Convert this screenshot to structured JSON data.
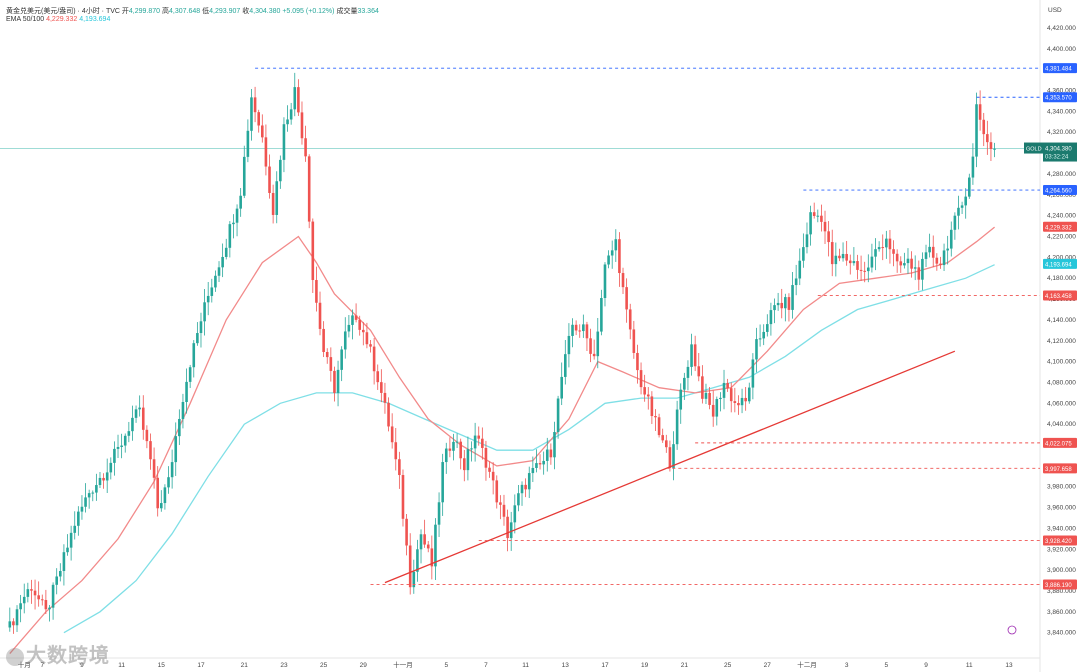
{
  "header": {
    "line1": "黄金兑美元(美元/盎司) · 4小时 · TVC",
    "open_label": "开",
    "open": "4,299.870",
    "high_label": "高",
    "high": "4,307.648",
    "low_label": "低",
    "low": "4,293.907",
    "close_label": "收",
    "close": "4,304.380",
    "change": "+5.095 (+0.12%)",
    "volume_label": "成交量",
    "volume": "33.364",
    "ema_label": "EMA 50/100",
    "ema50": "4,229.332",
    "ema100": "4,193.694"
  },
  "colors": {
    "up": "#26a69a",
    "down": "#ef5350",
    "ema50": "#f28a8a",
    "ema100": "#7fdfe6",
    "trendline": "#e53935",
    "resistance": "#2962ff",
    "support": "#ef5350"
  },
  "price_badge": {
    "symbol": "GOLD",
    "price": "4,304.380",
    "countdown": "03:32:24"
  },
  "watermark": "大数跨境",
  "chart_data": {
    "type": "candlestick",
    "currency": "USD",
    "y_ticks": [
      3840,
      3860,
      3880,
      3900,
      3920,
      3940,
      3960,
      3980,
      4000,
      4020,
      4040,
      4060,
      4080,
      4100,
      4120,
      4140,
      4160,
      4180,
      4200,
      4220,
      4240,
      4260,
      4280,
      4300,
      4320,
      4340,
      4360,
      4380,
      4400,
      4420
    ],
    "ylim": [
      3833,
      4443
    ],
    "x_ticks": [
      {
        "label": "十月",
        "i": 4
      },
      {
        "label": "7",
        "i": 9
      },
      {
        "label": "9",
        "i": 20
      },
      {
        "label": "11",
        "i": 31
      },
      {
        "label": "15",
        "i": 42
      },
      {
        "label": "17",
        "i": 53
      },
      {
        "label": "21",
        "i": 65
      },
      {
        "label": "23",
        "i": 76
      },
      {
        "label": "25",
        "i": 87
      },
      {
        "label": "29",
        "i": 98
      },
      {
        "label": "十一月",
        "i": 109
      },
      {
        "label": "5",
        "i": 121
      },
      {
        "label": "7",
        "i": 132
      },
      {
        "label": "11",
        "i": 143
      },
      {
        "label": "13",
        "i": 154
      },
      {
        "label": "17",
        "i": 165
      },
      {
        "label": "19",
        "i": 176
      },
      {
        "label": "21",
        "i": 187
      },
      {
        "label": "25",
        "i": 199
      },
      {
        "label": "27",
        "i": 210
      },
      {
        "label": "十二月",
        "i": 221
      },
      {
        "label": "3",
        "i": 232
      },
      {
        "label": "5",
        "i": 243
      },
      {
        "label": "9",
        "i": 254
      },
      {
        "label": "11",
        "i": 266
      },
      {
        "label": "13",
        "i": 277
      }
    ],
    "waypoints": [
      [
        0,
        3845
      ],
      [
        3,
        3870
      ],
      [
        6,
        3885
      ],
      [
        10,
        3858
      ],
      [
        14,
        3900
      ],
      [
        18,
        3945
      ],
      [
        22,
        3975
      ],
      [
        26,
        3993
      ],
      [
        30,
        4015
      ],
      [
        34,
        4045
      ],
      [
        36,
        4050
      ],
      [
        39,
        4005
      ],
      [
        41,
        3960
      ],
      [
        44,
        3985
      ],
      [
        47,
        4050
      ],
      [
        50,
        4100
      ],
      [
        53,
        4140
      ],
      [
        56,
        4175
      ],
      [
        60,
        4215
      ],
      [
        64,
        4265
      ],
      [
        67,
        4355
      ],
      [
        70,
        4315
      ],
      [
        73,
        4245
      ],
      [
        76,
        4325
      ],
      [
        79,
        4360
      ],
      [
        82,
        4300
      ],
      [
        84,
        4180
      ],
      [
        87,
        4110
      ],
      [
        90,
        4075
      ],
      [
        93,
        4125
      ],
      [
        96,
        4145
      ],
      [
        99,
        4120
      ],
      [
        102,
        4085
      ],
      [
        105,
        4040
      ],
      [
        108,
        3985
      ],
      [
        111,
        3890
      ],
      [
        114,
        3935
      ],
      [
        117,
        3905
      ],
      [
        120,
        4000
      ],
      [
        123,
        4030
      ],
      [
        126,
        4000
      ],
      [
        129,
        4030
      ],
      [
        132,
        4005
      ],
      [
        135,
        3970
      ],
      [
        138,
        3935
      ],
      [
        141,
        3970
      ],
      [
        144,
        3990
      ],
      [
        147,
        4000
      ],
      [
        150,
        4015
      ],
      [
        153,
        4085
      ],
      [
        156,
        4135
      ],
      [
        159,
        4130
      ],
      [
        162,
        4105
      ],
      [
        165,
        4190
      ],
      [
        168,
        4215
      ],
      [
        171,
        4145
      ],
      [
        174,
        4090
      ],
      [
        177,
        4060
      ],
      [
        180,
        4030
      ],
      [
        183,
        4005
      ],
      [
        186,
        4070
      ],
      [
        189,
        4115
      ],
      [
        192,
        4070
      ],
      [
        195,
        4050
      ],
      [
        198,
        4080
      ],
      [
        201,
        4060
      ],
      [
        204,
        4060
      ],
      [
        207,
        4115
      ],
      [
        210,
        4140
      ],
      [
        213,
        4155
      ],
      [
        216,
        4155
      ],
      [
        219,
        4195
      ],
      [
        222,
        4240
      ],
      [
        225,
        4240
      ],
      [
        228,
        4195
      ],
      [
        231,
        4200
      ],
      [
        234,
        4195
      ],
      [
        237,
        4185
      ],
      [
        240,
        4205
      ],
      [
        243,
        4220
      ],
      [
        246,
        4190
      ],
      [
        249,
        4195
      ],
      [
        252,
        4185
      ],
      [
        255,
        4205
      ],
      [
        258,
        4195
      ],
      [
        261,
        4225
      ],
      [
        264,
        4250
      ],
      [
        267,
        4295
      ],
      [
        268,
        4345
      ],
      [
        271,
        4310
      ],
      [
        273,
        4304
      ]
    ],
    "ema50": [
      [
        0,
        3820
      ],
      [
        10,
        3860
      ],
      [
        20,
        3890
      ],
      [
        30,
        3930
      ],
      [
        40,
        3985
      ],
      [
        50,
        4060
      ],
      [
        60,
        4140
      ],
      [
        70,
        4195
      ],
      [
        80,
        4220
      ],
      [
        85,
        4195
      ],
      [
        90,
        4165
      ],
      [
        100,
        4130
      ],
      [
        108,
        4085
      ],
      [
        116,
        4045
      ],
      [
        125,
        4020
      ],
      [
        135,
        4000
      ],
      [
        145,
        4005
      ],
      [
        155,
        4045
      ],
      [
        163,
        4100
      ],
      [
        170,
        4090
      ],
      [
        180,
        4075
      ],
      [
        190,
        4070
      ],
      [
        200,
        4075
      ],
      [
        210,
        4110
      ],
      [
        220,
        4150
      ],
      [
        230,
        4175
      ],
      [
        240,
        4180
      ],
      [
        250,
        4185
      ],
      [
        260,
        4195
      ],
      [
        268,
        4215
      ],
      [
        273,
        4229
      ]
    ],
    "ema100": [
      [
        15,
        3840
      ],
      [
        25,
        3860
      ],
      [
        35,
        3890
      ],
      [
        45,
        3935
      ],
      [
        55,
        3990
      ],
      [
        65,
        4040
      ],
      [
        75,
        4060
      ],
      [
        85,
        4070
      ],
      [
        95,
        4070
      ],
      [
        105,
        4060
      ],
      [
        115,
        4045
      ],
      [
        125,
        4030
      ],
      [
        135,
        4015
      ],
      [
        145,
        4015
      ],
      [
        155,
        4035
      ],
      [
        165,
        4060
      ],
      [
        175,
        4065
      ],
      [
        185,
        4065
      ],
      [
        195,
        4075
      ],
      [
        205,
        4085
      ],
      [
        215,
        4105
      ],
      [
        225,
        4130
      ],
      [
        235,
        4150
      ],
      [
        245,
        4160
      ],
      [
        255,
        4170
      ],
      [
        265,
        4180
      ],
      [
        273,
        4193
      ]
    ],
    "trendline": {
      "from": [
        104,
        3888
      ],
      "to": [
        262,
        4110
      ]
    },
    "h_levels": [
      {
        "value": 4381.484,
        "label": "4,381.484",
        "style": "resistance",
        "from": 68
      },
      {
        "value": 4353.57,
        "label": "4,353.570",
        "style": "resistance",
        "from": 268
      },
      {
        "value": 4264.56,
        "label": "4,264.560",
        "style": "resistance",
        "from": 220
      },
      {
        "value": 4163.458,
        "label": "4,163.458",
        "style": "support",
        "from": 224
      },
      {
        "value": 4022.075,
        "label": "4,022.075",
        "style": "support",
        "from": 190
      },
      {
        "value": 3997.658,
        "label": "3,997.658",
        "style": "support",
        "from": 182
      },
      {
        "value": 3928.42,
        "label": "3,928.420",
        "style": "support",
        "from": 130
      },
      {
        "value": 3886.19,
        "label": "3,886.190",
        "style": "support",
        "from": 100
      }
    ],
    "ema_badges": [
      {
        "value": 4229.332,
        "label": "4,229.332",
        "color": "#ef5350"
      },
      {
        "value": 4193.694,
        "label": "4,193.694",
        "color": "#26c6da"
      }
    ],
    "current_price": 4304.38,
    "xlabel": "",
    "ylabel": "",
    "grid": false
  }
}
